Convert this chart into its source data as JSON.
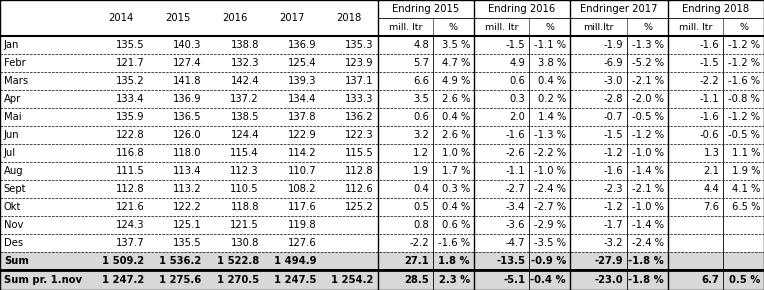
{
  "col_headers_years": [
    "",
    "2014",
    "2015",
    "2016",
    "2017",
    "2018"
  ],
  "endring_groups": [
    {
      "label": "Endring 2015",
      "subheaders": [
        "mill. ltr",
        "%"
      ]
    },
    {
      "label": "Endring 2016",
      "subheaders": [
        "mill. ltr",
        "%"
      ]
    },
    {
      "label": "Endringer 2017",
      "subheaders": [
        "mill.ltr",
        "%"
      ]
    },
    {
      "label": "Endring 2018",
      "subheaders": [
        "mill. ltr",
        "%"
      ]
    }
  ],
  "rows": [
    [
      "Jan",
      "135.5",
      "140.3",
      "138.8",
      "136.9",
      "135.3",
      "4.8",
      "3.5 %",
      "-1.5",
      "-1.1 %",
      "-1.9",
      "-1.3 %",
      "-1.6",
      "-1.2 %"
    ],
    [
      "Febr",
      "121.7",
      "127.4",
      "132.3",
      "125.4",
      "123.9",
      "5.7",
      "4.7 %",
      "4.9",
      "3.8 %",
      "-6.9",
      "-5.2 %",
      "-1.5",
      "-1.2 %"
    ],
    [
      "Mars",
      "135.2",
      "141.8",
      "142.4",
      "139.3",
      "137.1",
      "6.6",
      "4.9 %",
      "0.6",
      "0.4 %",
      "-3.0",
      "-2.1 %",
      "-2.2",
      "-1.6 %"
    ],
    [
      "Apr",
      "133.4",
      "136.9",
      "137.2",
      "134.4",
      "133.3",
      "3.5",
      "2.6 %",
      "0.3",
      "0.2 %",
      "-2.8",
      "-2.0 %",
      "-1.1",
      "-0.8 %"
    ],
    [
      "Mai",
      "135.9",
      "136.5",
      "138.5",
      "137.8",
      "136.2",
      "0.6",
      "0.4 %",
      "2.0",
      "1.4 %",
      "-0.7",
      "-0.5 %",
      "-1.6",
      "-1.2 %"
    ],
    [
      "Jun",
      "122.8",
      "126.0",
      "124.4",
      "122.9",
      "122.3",
      "3.2",
      "2.6 %",
      "-1.6",
      "-1.3 %",
      "-1.5",
      "-1.2 %",
      "-0.6",
      "-0.5 %"
    ],
    [
      "Jul",
      "116.8",
      "118.0",
      "115.4",
      "114.2",
      "115.5",
      "1.2",
      "1.0 %",
      "-2.6",
      "-2.2 %",
      "-1.2",
      "-1.0 %",
      "1.3",
      "1.1 %"
    ],
    [
      "Aug",
      "111.5",
      "113.4",
      "112.3",
      "110.7",
      "112.8",
      "1.9",
      "1.7 %",
      "-1.1",
      "-1.0 %",
      "-1.6",
      "-1.4 %",
      "2.1",
      "1.9 %"
    ],
    [
      "Sept",
      "112.8",
      "113.2",
      "110.5",
      "108.2",
      "112.6",
      "0.4",
      "0.3 %",
      "-2.7",
      "-2.4 %",
      "-2.3",
      "-2.1 %",
      "4.4",
      "4.1 %"
    ],
    [
      "Okt",
      "121.6",
      "122.2",
      "118.8",
      "117.6",
      "125.2",
      "0.5",
      "0.4 %",
      "-3.4",
      "-2.7 %",
      "-1.2",
      "-1.0 %",
      "7.6",
      "6.5 %"
    ],
    [
      "Nov",
      "124.3",
      "125.1",
      "121.5",
      "119.8",
      "",
      "0.8",
      "0.6 %",
      "-3.6",
      "-2.9 %",
      "-1.7",
      "-1.4 %",
      "",
      ""
    ],
    [
      "Des",
      "137.7",
      "135.5",
      "130.8",
      "127.6",
      "",
      "-2.2",
      "-1.6 %",
      "-4.7",
      "-3.5 %",
      "-3.2",
      "-2.4 %",
      "",
      ""
    ],
    [
      "Sum",
      "1 509.2",
      "1 536.2",
      "1 522.8",
      "1 494.9",
      "",
      "27.1",
      "1.8 %",
      "-13.5",
      "-0.9 %",
      "-27.9",
      "-1.8 %",
      "",
      ""
    ]
  ],
  "last_row": [
    "Sum pr. 1.nov",
    "1 247.2",
    "1 275.6",
    "1 270.5",
    "1 247.5",
    "1 254.2",
    "28.5",
    "2.3 %",
    "-5.1",
    "-0.4 %",
    "-23.0",
    "-1.8 %",
    "6.7",
    "0.5 %"
  ],
  "sum_bg": "#d8d8d8",
  "last_row_bg": "#d8d8d8",
  "font_size": 7.2,
  "font_size_header": 7.2,
  "font_size_sub": 6.8
}
